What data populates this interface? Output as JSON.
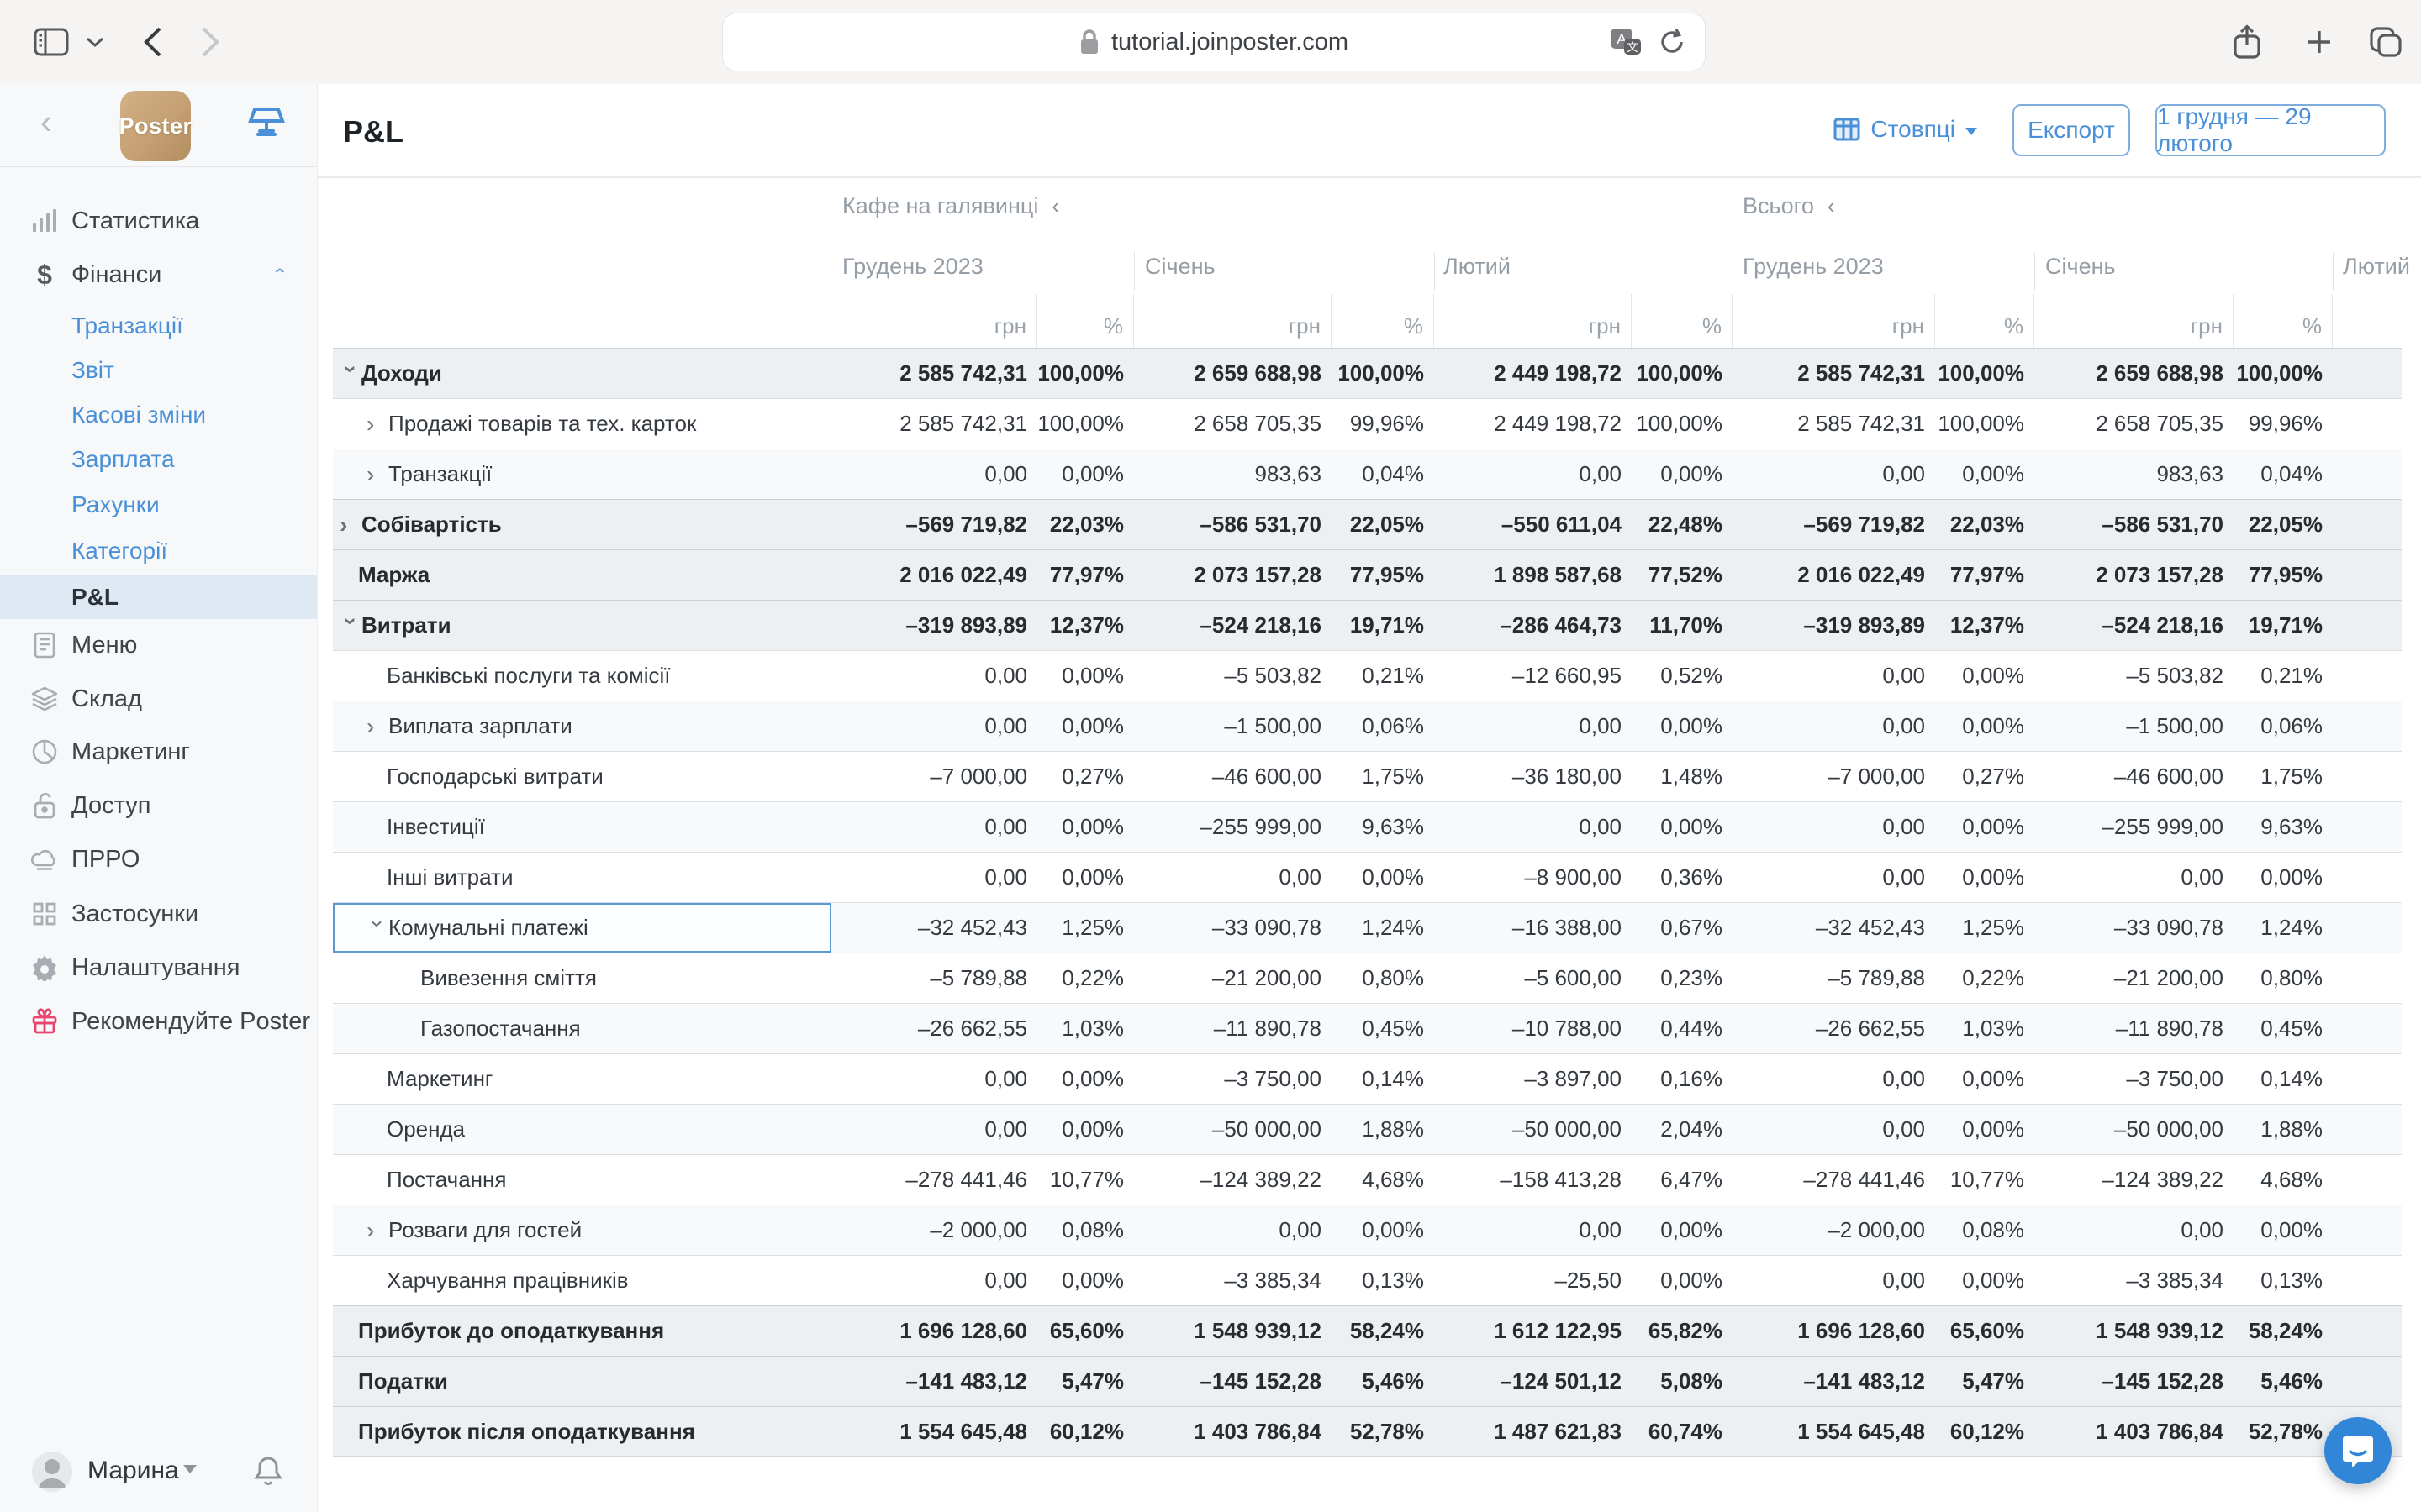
{
  "colors": {
    "accent": "#4a90d8",
    "selected_border": "#5b99d4",
    "chat_bubble": "#3186d8",
    "gift": "#e8446d",
    "summary_row_bg": "#edf0f2"
  },
  "browser": {
    "url": "tutorial.joinposter.com",
    "icons": [
      "sidebar-toggle-icon",
      "chevron-down-icon",
      "back-icon",
      "forward-icon",
      "lock-icon",
      "translate-icon",
      "reload-icon",
      "share-icon",
      "new-tab-icon",
      "tabs-icon"
    ]
  },
  "sidebar": {
    "logo_text": "Poster",
    "back_icon": "‹",
    "terminal_icon": "pos-terminal-icon",
    "top_items": [
      {
        "label": "Статистика",
        "icon": "bar-chart-icon"
      },
      {
        "label": "Фінанси",
        "icon": "dollar-icon",
        "expanded": true
      }
    ],
    "finance_children": [
      {
        "label": "Транзакції"
      },
      {
        "label": "Звіт"
      },
      {
        "label": "Касові зміни"
      },
      {
        "label": "Зарплата"
      },
      {
        "label": "Рахунки"
      },
      {
        "label": "Категорії"
      },
      {
        "label": "P&L",
        "selected": true
      }
    ],
    "lower_items": [
      {
        "label": "Меню",
        "icon": "document-icon"
      },
      {
        "label": "Склад",
        "icon": "layers-icon"
      },
      {
        "label": "Маркетинг",
        "icon": "pie-chart-icon"
      },
      {
        "label": "Доступ",
        "icon": "lock-open-icon"
      },
      {
        "label": "ПРРО",
        "icon": "cloud-icon"
      },
      {
        "label": "Застосунки",
        "icon": "grid-icon"
      },
      {
        "label": "Налаштування",
        "icon": "gear-icon"
      },
      {
        "label": "Рекомендуйте Poster",
        "icon": "gift-icon",
        "accent": "#e8446d"
      }
    ],
    "user": {
      "name": "Марина",
      "avatar_icon": "avatar",
      "bell_icon": "bell-icon"
    }
  },
  "header": {
    "title": "P&L",
    "columns_button": "Стовпці",
    "export_button": "Експорт",
    "date_range_button": "1 грудня — 29 лютого"
  },
  "table": {
    "location_groups": [
      {
        "label": "Кафе на галявинці",
        "collapse_icon": "‹"
      },
      {
        "label": "Всього",
        "collapse_icon": "‹"
      }
    ],
    "month_headers": [
      "Грудень 2023",
      "Січень",
      "Лютий",
      "Грудень 2023",
      "Січень",
      "Лютий"
    ],
    "unit_headers": [
      "грн",
      "%",
      "грн",
      "%",
      "грн",
      "%",
      "грн",
      "%",
      "грн",
      "%"
    ],
    "rows": [
      {
        "label": "Доходи",
        "level": 0,
        "caret": "open",
        "bold": true,
        "cells": [
          "2 585 742,31",
          "100,00%",
          "2 659 688,98",
          "100,00%",
          "2 449 198,72",
          "100,00%",
          "2 585 742,31",
          "100,00%",
          "2 659 688,98",
          "100,00%"
        ]
      },
      {
        "label": "Продажі товарів та тех. карток",
        "level": 1,
        "caret": "closed",
        "shade": "w",
        "cells": [
          "2 585 742,31",
          "100,00%",
          "2 658 705,35",
          "99,96%",
          "2 449 198,72",
          "100,00%",
          "2 585 742,31",
          "100,00%",
          "2 658 705,35",
          "99,96%"
        ]
      },
      {
        "label": "Транзакції",
        "level": 1,
        "caret": "closed",
        "shade": "t",
        "cells": [
          "0,00",
          "0,00%",
          "983,63",
          "0,04%",
          "0,00",
          "0,00%",
          "0,00",
          "0,00%",
          "983,63",
          "0,04%"
        ]
      },
      {
        "label": "Собівартість",
        "level": 0,
        "caret": "closed",
        "bold": true,
        "cells": [
          "–569 719,82",
          "22,03%",
          "–586 531,70",
          "22,05%",
          "–550 611,04",
          "22,48%",
          "–569 719,82",
          "22,03%",
          "–586 531,70",
          "22,05%"
        ]
      },
      {
        "label": "Маржа",
        "level": 0,
        "caret": null,
        "bold": true,
        "cells": [
          "2 016 022,49",
          "77,97%",
          "2 073 157,28",
          "77,95%",
          "1 898 587,68",
          "77,52%",
          "2 016 022,49",
          "77,97%",
          "2 073 157,28",
          "77,95%"
        ]
      },
      {
        "label": "Витрати",
        "level": 0,
        "caret": "open",
        "bold": true,
        "cells": [
          "–319 893,89",
          "12,37%",
          "–524 218,16",
          "19,71%",
          "–286 464,73",
          "11,70%",
          "–319 893,89",
          "12,37%",
          "–524 218,16",
          "19,71%"
        ]
      },
      {
        "label": "Банківські послуги та комісії",
        "level": 1,
        "caret": null,
        "shade": "w",
        "cells": [
          "0,00",
          "0,00%",
          "–5 503,82",
          "0,21%",
          "–12 660,95",
          "0,52%",
          "0,00",
          "0,00%",
          "–5 503,82",
          "0,21%"
        ]
      },
      {
        "label": "Виплата зарплати",
        "level": 1,
        "caret": "closed",
        "shade": "t",
        "cells": [
          "0,00",
          "0,00%",
          "–1 500,00",
          "0,06%",
          "0,00",
          "0,00%",
          "0,00",
          "0,00%",
          "–1 500,00",
          "0,06%"
        ]
      },
      {
        "label": "Господарські витрати",
        "level": 1,
        "caret": null,
        "shade": "w",
        "cells": [
          "–7 000,00",
          "0,27%",
          "–46 600,00",
          "1,75%",
          "–36 180,00",
          "1,48%",
          "–7 000,00",
          "0,27%",
          "–46 600,00",
          "1,75%"
        ]
      },
      {
        "label": "Інвестиції",
        "level": 1,
        "caret": null,
        "shade": "t",
        "cells": [
          "0,00",
          "0,00%",
          "–255 999,00",
          "9,63%",
          "0,00",
          "0,00%",
          "0,00",
          "0,00%",
          "–255 999,00",
          "9,63%"
        ]
      },
      {
        "label": "Інші витрати",
        "level": 1,
        "caret": null,
        "shade": "w",
        "cells": [
          "0,00",
          "0,00%",
          "0,00",
          "0,00%",
          "–8 900,00",
          "0,36%",
          "0,00",
          "0,00%",
          "0,00",
          "0,00%"
        ]
      },
      {
        "label": "Комунальні платежі",
        "level": 1,
        "caret": "open",
        "shade": "t",
        "selected": true,
        "cells": [
          "–32 452,43",
          "1,25%",
          "–33 090,78",
          "1,24%",
          "–16 388,00",
          "0,67%",
          "–32 452,43",
          "1,25%",
          "–33 090,78",
          "1,24%"
        ]
      },
      {
        "label": "Вивезення сміття",
        "level": 2,
        "caret": null,
        "shade": "w",
        "cells": [
          "–5 789,88",
          "0,22%",
          "–21 200,00",
          "0,80%",
          "–5 600,00",
          "0,23%",
          "–5 789,88",
          "0,22%",
          "–21 200,00",
          "0,80%"
        ]
      },
      {
        "label": "Газопостачання",
        "level": 2,
        "caret": null,
        "shade": "t",
        "cells": [
          "–26 662,55",
          "1,03%",
          "–11 890,78",
          "0,45%",
          "–10 788,00",
          "0,44%",
          "–26 662,55",
          "1,03%",
          "–11 890,78",
          "0,45%"
        ]
      },
      {
        "label": "Маркетинг",
        "level": 1,
        "caret": null,
        "shade": "w",
        "cells": [
          "0,00",
          "0,00%",
          "–3 750,00",
          "0,14%",
          "–3 897,00",
          "0,16%",
          "0,00",
          "0,00%",
          "–3 750,00",
          "0,14%"
        ]
      },
      {
        "label": "Оренда",
        "level": 1,
        "caret": null,
        "shade": "t",
        "cells": [
          "0,00",
          "0,00%",
          "–50 000,00",
          "1,88%",
          "–50 000,00",
          "2,04%",
          "0,00",
          "0,00%",
          "–50 000,00",
          "1,88%"
        ]
      },
      {
        "label": "Постачання",
        "level": 1,
        "caret": null,
        "shade": "w",
        "cells": [
          "–278 441,46",
          "10,77%",
          "–124 389,22",
          "4,68%",
          "–158 413,28",
          "6,47%",
          "–278 441,46",
          "10,77%",
          "–124 389,22",
          "4,68%"
        ]
      },
      {
        "label": "Розваги для гостей",
        "level": 1,
        "caret": "closed",
        "shade": "t",
        "cells": [
          "–2 000,00",
          "0,08%",
          "0,00",
          "0,00%",
          "0,00",
          "0,00%",
          "–2 000,00",
          "0,08%",
          "0,00",
          "0,00%"
        ]
      },
      {
        "label": "Харчування працівників",
        "level": 1,
        "caret": null,
        "shade": "w",
        "cells": [
          "0,00",
          "0,00%",
          "–3 385,34",
          "0,13%",
          "–25,50",
          "0,00%",
          "0,00",
          "0,00%",
          "–3 385,34",
          "0,13%"
        ]
      },
      {
        "label": "Прибуток до оподаткування",
        "level": 0,
        "caret": null,
        "bold": true,
        "cells": [
          "1 696 128,60",
          "65,60%",
          "1 548 939,12",
          "58,24%",
          "1 612 122,95",
          "65,82%",
          "1 696 128,60",
          "65,60%",
          "1 548 939,12",
          "58,24%"
        ]
      },
      {
        "label": "Податки",
        "level": 0,
        "caret": null,
        "bold": true,
        "cells": [
          "–141 483,12",
          "5,47%",
          "–145 152,28",
          "5,46%",
          "–124 501,12",
          "5,08%",
          "–141 483,12",
          "5,47%",
          "–145 152,28",
          "5,46%"
        ]
      },
      {
        "label": "Прибуток після оподаткування",
        "level": 0,
        "caret": null,
        "bold": true,
        "cells": [
          "1 554 645,48",
          "60,12%",
          "1 403 786,84",
          "52,78%",
          "1 487 621,83",
          "60,74%",
          "1 554 645,48",
          "60,12%",
          "1 403 786,84",
          "52,78%"
        ]
      }
    ]
  },
  "chat": {
    "icon": "chat-bubble-icon"
  }
}
